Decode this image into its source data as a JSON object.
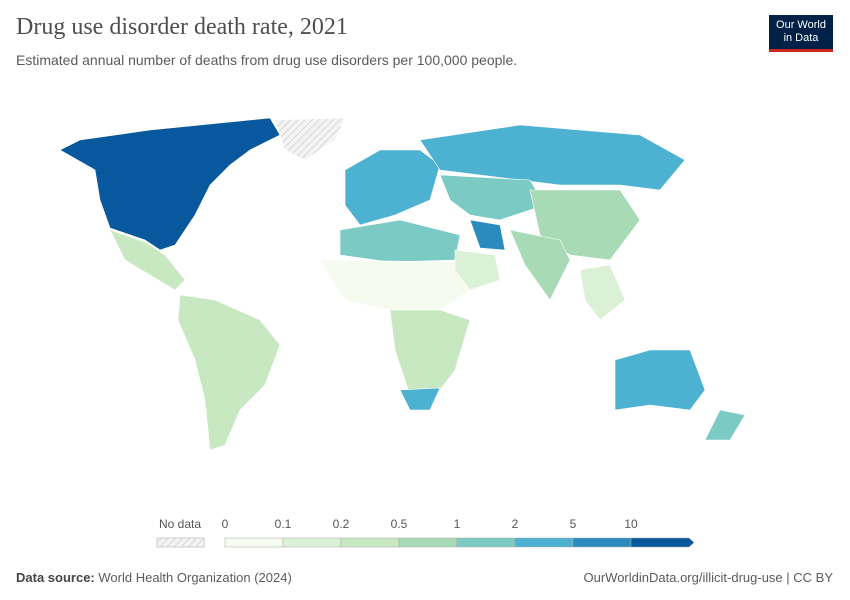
{
  "title": "Drug use disorder death rate, 2021",
  "subtitle": "Estimated annual number of deaths from drug use disorders per 100,000 people.",
  "logo": {
    "line1": "Our World",
    "line2": "in Data"
  },
  "legend": {
    "no_data_label": "No data",
    "bins": [
      "0",
      "0.1",
      "0.2",
      "0.5",
      "1",
      "2",
      "5",
      "10"
    ],
    "colors": [
      "#f5fbef",
      "#dbf1d5",
      "#c8e8c1",
      "#a8dab6",
      "#7bcbc4",
      "#4db1d2",
      "#2b8bbe",
      "#08589e"
    ],
    "no_data_color": "#e8e8e8"
  },
  "regions": [
    {
      "name": "North America (USA, Canada)",
      "bin": 7
    },
    {
      "name": "Greenland",
      "bin": -1
    },
    {
      "name": "Mexico & Central America",
      "bin": 2
    },
    {
      "name": "South America",
      "bin": 2
    },
    {
      "name": "Western Europe",
      "bin": 5
    },
    {
      "name": "Russia",
      "bin": 5
    },
    {
      "name": "Central Asia",
      "bin": 4
    },
    {
      "name": "China",
      "bin": 3
    },
    {
      "name": "India",
      "bin": 3
    },
    {
      "name": "North Africa",
      "bin": 4
    },
    {
      "name": "Sahel & West Africa",
      "bin": 0
    },
    {
      "name": "Southern Africa",
      "bin": 2
    },
    {
      "name": "South Africa",
      "bin": 5
    },
    {
      "name": "Australia",
      "bin": 5
    },
    {
      "name": "New Zealand",
      "bin": 4
    },
    {
      "name": "Southeast Asia",
      "bin": 1
    },
    {
      "name": "Iran",
      "bin": 6
    },
    {
      "name": "Arabian Peninsula",
      "bin": 1
    }
  ],
  "footer": {
    "source_label": "Data source:",
    "source": "World Health Organization (2024)",
    "url": "OurWorldinData.org/illicit-drug-use | CC BY"
  }
}
